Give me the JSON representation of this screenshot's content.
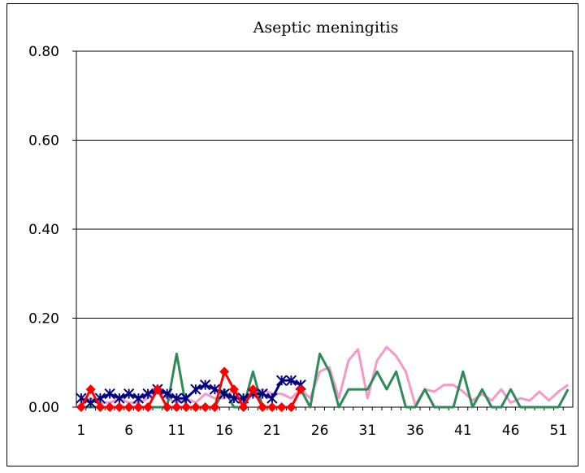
{
  "chart_data": {
    "type": "line",
    "title": "Aseptic meningitis",
    "xlabel": "",
    "ylabel": "",
    "xlim": [
      1,
      52
    ],
    "ylim": [
      0,
      0.8
    ],
    "y_ticks": [
      "0.00",
      "0.20",
      "0.40",
      "0.60",
      "0.80"
    ],
    "y_tick_values": [
      0,
      0.2,
      0.4,
      0.6,
      0.8
    ],
    "x_ticks": [
      "1",
      "6",
      "11",
      "16",
      "21",
      "26",
      "31",
      "36",
      "41",
      "46",
      "51"
    ],
    "x_tick_values": [
      1,
      6,
      11,
      16,
      21,
      26,
      31,
      36,
      41,
      46,
      51
    ],
    "grid": "horizontal",
    "legend": "none",
    "series": [
      {
        "color": "#f599c8",
        "marker": "none",
        "x": [
          1,
          2,
          3,
          4,
          5,
          6,
          7,
          8,
          9,
          10,
          11,
          12,
          13,
          14,
          15,
          16,
          17,
          18,
          19,
          20,
          21,
          22,
          23,
          24,
          25,
          26,
          27,
          28,
          29,
          30,
          31,
          32,
          33,
          34,
          35,
          36,
          37,
          38,
          39,
          40,
          41,
          42,
          43,
          44,
          45,
          46,
          47,
          48,
          49,
          50,
          51,
          52
        ],
        "values": [
          0.01,
          0.02,
          0.01,
          0.01,
          0.02,
          0.01,
          0.01,
          0.02,
          0.04,
          0.02,
          0.01,
          0.02,
          0.01,
          0.03,
          0.02,
          0.02,
          0.04,
          0.02,
          0.03,
          0.04,
          0.03,
          0.03,
          0.02,
          0.04,
          0.02,
          0.08,
          0.09,
          0.02,
          0.105,
          0.13,
          0.02,
          0.105,
          0.135,
          0.115,
          0.08,
          0.005,
          0.04,
          0.035,
          0.05,
          0.05,
          0.035,
          0.015,
          0.03,
          0.015,
          0.04,
          0.01,
          0.02,
          0.015,
          0.035,
          0.015,
          0.035,
          0.05
        ]
      },
      {
        "color": "#2e8b57",
        "marker": "none",
        "x": [
          1,
          2,
          3,
          4,
          5,
          6,
          7,
          8,
          9,
          10,
          11,
          12,
          13,
          14,
          15,
          16,
          17,
          18,
          19,
          20,
          21,
          22,
          23,
          24,
          25,
          26,
          27,
          28,
          29,
          30,
          31,
          32,
          33,
          34,
          35,
          36,
          37,
          38,
          39,
          40,
          41,
          42,
          43,
          44,
          45,
          46,
          47,
          48,
          49,
          50,
          51,
          52
        ],
        "values": [
          0,
          0,
          0,
          0,
          0,
          0,
          0,
          0,
          0,
          0,
          0.12,
          0,
          0,
          0,
          0,
          0.04,
          0,
          0,
          0.08,
          0,
          0,
          0,
          0,
          0.04,
          0,
          0.12,
          0.08,
          0,
          0.04,
          0.04,
          0.04,
          0.08,
          0.04,
          0.08,
          0,
          0,
          0.04,
          0,
          0,
          0,
          0.08,
          0,
          0.04,
          0,
          0,
          0.04,
          0,
          0,
          0,
          0,
          0,
          0.04
        ]
      },
      {
        "color": "#000080",
        "marker": "asterisk",
        "x": [
          1,
          2,
          3,
          4,
          5,
          6,
          7,
          8,
          9,
          10,
          11,
          12,
          13,
          14,
          15,
          16,
          17,
          18,
          19,
          20,
          21,
          22,
          23,
          24
        ],
        "values": [
          0.02,
          0.01,
          0.02,
          0.03,
          0.02,
          0.03,
          0.02,
          0.03,
          0.04,
          0.03,
          0.02,
          0.02,
          0.04,
          0.05,
          0.04,
          0.03,
          0.02,
          0.02,
          0.03,
          0.03,
          0.02,
          0.06,
          0.06,
          0.05
        ]
      },
      {
        "color": "#ff0000",
        "marker": "diamond",
        "x": [
          1,
          2,
          3,
          4,
          5,
          6,
          7,
          8,
          9,
          10,
          11,
          12,
          13,
          14,
          15,
          16,
          17,
          18,
          19,
          20,
          21,
          22,
          23,
          24
        ],
        "values": [
          0,
          0.04,
          0,
          0,
          0,
          0,
          0,
          0,
          0.04,
          0,
          0,
          0,
          0,
          0,
          0,
          0.08,
          0.04,
          0,
          0.04,
          0,
          0,
          0,
          0,
          0.04
        ]
      }
    ]
  }
}
